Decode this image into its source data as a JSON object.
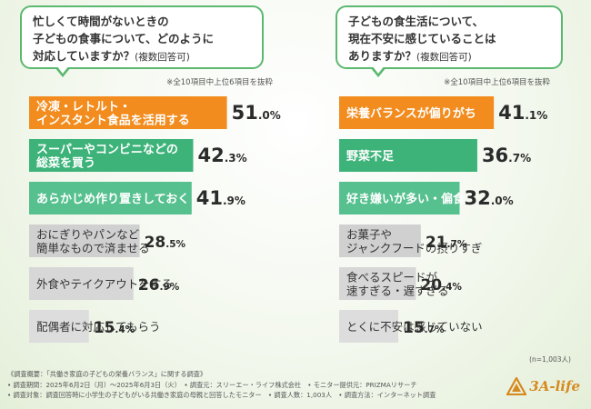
{
  "chart_data": [
    {
      "type": "bar",
      "title": "忙しくて時間がないときの\n子どもの食事について、どのように\n対応していますか？",
      "title_suffix": "(複数回答可)",
      "note": "※全10項目中上位6項目を抜粋",
      "categories": [
        "冷凍・レトルト・\nインスタント食品を活用する",
        "スーパーやコンビニなどの\n総菜を買う",
        "あらかじめ作り置きしておく",
        "おにぎりやパンなど\n簡単なもので済ませる",
        "外食やテイクアウトをする",
        "配偶者に対応してもらう"
      ],
      "values": [
        51.0,
        42.3,
        41.9,
        28.5,
        26.9,
        15.4
      ],
      "value_labels_int": [
        "51",
        "42",
        "41",
        "28",
        "26",
        "15"
      ],
      "value_labels_dec": [
        ".0%",
        ".3%",
        ".9%",
        ".5%",
        ".9%",
        ".4%"
      ],
      "unit": "%",
      "xlim": [
        0,
        60
      ],
      "bar_colors": [
        "#f28c1e",
        "#3db37a",
        "#56c08f",
        "#d0d0d0",
        "#d7d7d7",
        "#dddddd"
      ]
    },
    {
      "type": "bar",
      "title": "子どもの食生活について、\n現在不安に感じていることは\nありますか？",
      "title_suffix": "(複数回答可)",
      "note": "※全10項目中上位6項目を抜粋",
      "categories": [
        "栄養バランスが偏りがち",
        "野菜不足",
        "好き嫌いが多い・偏食",
        "お菓子や\nジャンクフードの摂りすぎ",
        "食べるスピードが\n速すぎる・遅すぎる",
        "とくに不安は感じていない"
      ],
      "values": [
        41.1,
        36.7,
        32.0,
        21.7,
        20.4,
        15.7
      ],
      "value_labels_int": [
        "41",
        "36",
        "32",
        "21",
        "20",
        "15"
      ],
      "value_labels_dec": [
        ".1%",
        ".7%",
        ".0%",
        ".7%",
        ".4%",
        ".7%"
      ],
      "unit": "%",
      "xlim": [
        0,
        50
      ],
      "bar_colors": [
        "#f28c1e",
        "#3db37a",
        "#56c08f",
        "#d0d0d0",
        "#d7d7d7",
        "#dddddd"
      ]
    }
  ],
  "sample_size": "(n=1,003人)",
  "footer": {
    "line1": "《調査概要：「共働き家庭の子どもの栄養バランス」に関する調査》",
    "line2": "• 調査期間：2025年6月2日（月）～2025年6月3日（火）　• 調査元：スリーエー・ライフ株式会社　• モニター提供元：PRIZMAリサーチ",
    "line3": "• 調査対象：調査回答時に小学生の子どもがいる共働き家庭の母親と回答したモニター　• 調査人数：1,003人　• 調査方法：インターネット調査"
  },
  "logo_text": "3A-life",
  "colors": {
    "accent_orange": "#f28c1e",
    "accent_green": "#3db37a",
    "bubble_border": "#5bb86f",
    "bar_gray": "#d4d4d4",
    "logo": "#d68a1e"
  }
}
